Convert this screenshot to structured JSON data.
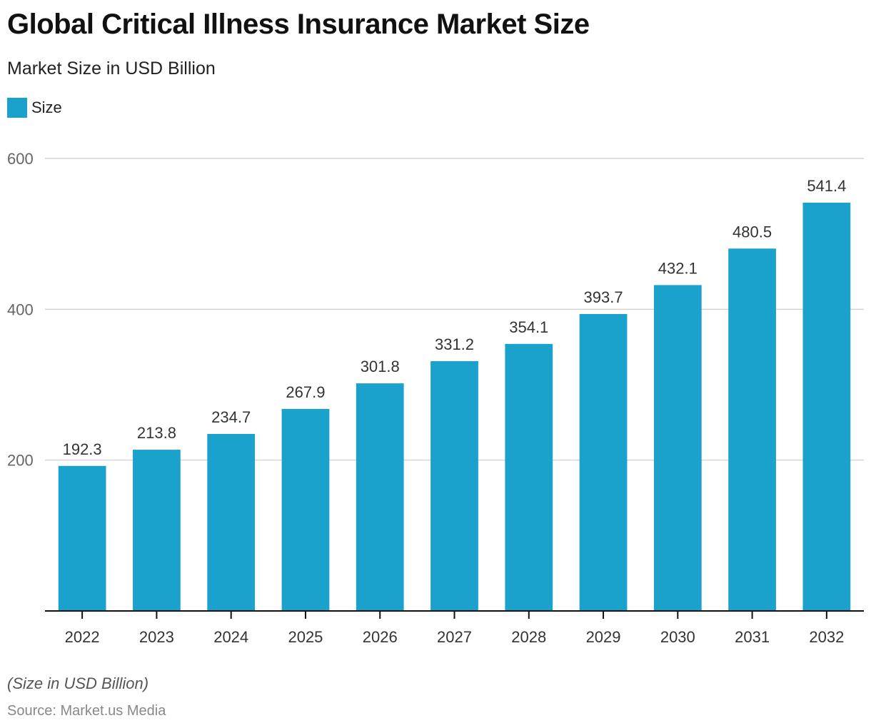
{
  "chart_data": {
    "type": "bar",
    "title": "Global Critical Illness Insurance Market Size",
    "subtitle": "Market Size in USD Billion",
    "xlabel": "",
    "ylabel": "",
    "categories": [
      "2022",
      "2023",
      "2024",
      "2025",
      "2026",
      "2027",
      "2028",
      "2029",
      "2030",
      "2031",
      "2032"
    ],
    "series": [
      {
        "name": "Size",
        "color": "#1aa1cc",
        "values": [
          192.3,
          213.8,
          234.7,
          267.9,
          301.8,
          331.2,
          354.1,
          393.7,
          432.1,
          480.5,
          541.4
        ]
      }
    ],
    "data_labels": [
      "192.3",
      "213.8",
      "234.7",
      "267.9",
      "301.8",
      "331.2",
      "354.1",
      "393.7",
      "432.1",
      "480.5",
      "541.4"
    ],
    "ylim": [
      0,
      600
    ],
    "yticks": [
      200,
      400,
      600
    ],
    "ytick_labels": [
      "200",
      "400",
      "600"
    ],
    "grid": true,
    "legend": {
      "position": "top-left",
      "entries": [
        "Size"
      ]
    },
    "note": "(Size in USD Billion)",
    "source": "Source: Market.us Media"
  }
}
